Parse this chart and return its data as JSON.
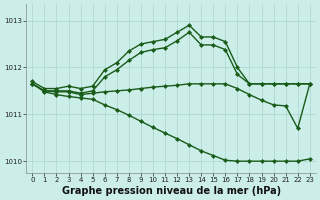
{
  "bg_color": "#cceee8",
  "grid_color": "#aad4ce",
  "line_color": "#1a5c1a",
  "xlabel": "Graphe pression niveau de la mer (hPa)",
  "xlabel_fontsize": 7.0,
  "ylim": [
    1009.75,
    1013.35
  ],
  "xlim": [
    -0.5,
    23.5
  ],
  "yticks": [
    1010,
    1011,
    1012,
    1013
  ],
  "xticks": [
    0,
    1,
    2,
    3,
    4,
    5,
    6,
    7,
    8,
    9,
    10,
    11,
    12,
    13,
    14,
    15,
    16,
    17,
    18,
    19,
    20,
    21,
    22,
    23
  ],
  "series": [
    {
      "x": [
        0,
        1,
        2,
        3,
        4,
        5,
        6,
        7,
        8,
        9,
        10,
        11,
        12,
        13,
        14,
        15,
        16,
        17,
        18,
        19,
        20,
        21,
        22,
        23
      ],
      "y": [
        1011.7,
        1011.55,
        1011.55,
        1011.6,
        1011.55,
        1011.6,
        1011.95,
        1012.1,
        1012.35,
        1012.5,
        1012.55,
        1012.6,
        1012.75,
        1012.9,
        1012.65,
        1012.65,
        1012.55,
        1012.0,
        1011.65,
        1011.65,
        1011.65,
        1011.65,
        1011.65,
        1011.65
      ],
      "marker": "D",
      "marker_size": 2.0,
      "linewidth": 1.0
    },
    {
      "x": [
        0,
        1,
        2,
        3,
        4,
        5,
        6,
        7,
        8,
        9,
        10,
        11,
        12,
        13,
        14,
        15,
        16,
        17,
        18,
        19,
        20,
        21,
        22,
        23
      ],
      "y": [
        1011.65,
        1011.5,
        1011.5,
        1011.5,
        1011.45,
        1011.5,
        1011.8,
        1011.95,
        1012.15,
        1012.32,
        1012.38,
        1012.42,
        1012.57,
        1012.75,
        1012.48,
        1012.48,
        1012.38,
        1011.85,
        1011.65,
        1011.65,
        1011.65,
        1011.65,
        1011.65,
        1011.65
      ],
      "marker": "D",
      "marker_size": 2.0,
      "linewidth": 1.0
    },
    {
      "x": [
        0,
        1,
        2,
        3,
        4,
        5,
        6,
        7,
        8,
        9,
        10,
        11,
        12,
        13,
        14,
        15,
        16,
        17,
        18,
        19,
        20,
        21,
        22,
        23
      ],
      "y": [
        1011.65,
        1011.5,
        1011.48,
        1011.48,
        1011.42,
        1011.45,
        1011.48,
        1011.5,
        1011.52,
        1011.55,
        1011.58,
        1011.6,
        1011.62,
        1011.65,
        1011.65,
        1011.65,
        1011.65,
        1011.55,
        1011.42,
        1011.3,
        1011.2,
        1011.18,
        1010.7,
        1011.65
      ],
      "marker": "D",
      "marker_size": 2.0,
      "linewidth": 1.0
    },
    {
      "x": [
        0,
        1,
        2,
        3,
        4,
        5,
        6,
        7,
        8,
        9,
        10,
        11,
        12,
        13,
        14,
        15,
        16,
        17,
        18,
        19,
        20,
        21,
        22,
        23
      ],
      "y": [
        1011.65,
        1011.48,
        1011.42,
        1011.38,
        1011.35,
        1011.32,
        1011.2,
        1011.1,
        1010.98,
        1010.85,
        1010.72,
        1010.6,
        1010.48,
        1010.35,
        1010.22,
        1010.12,
        1010.02,
        1010.0,
        1010.0,
        1010.0,
        1010.0,
        1010.0,
        1010.0,
        1010.05
      ],
      "marker": "D",
      "marker_size": 2.0,
      "linewidth": 1.0
    }
  ]
}
